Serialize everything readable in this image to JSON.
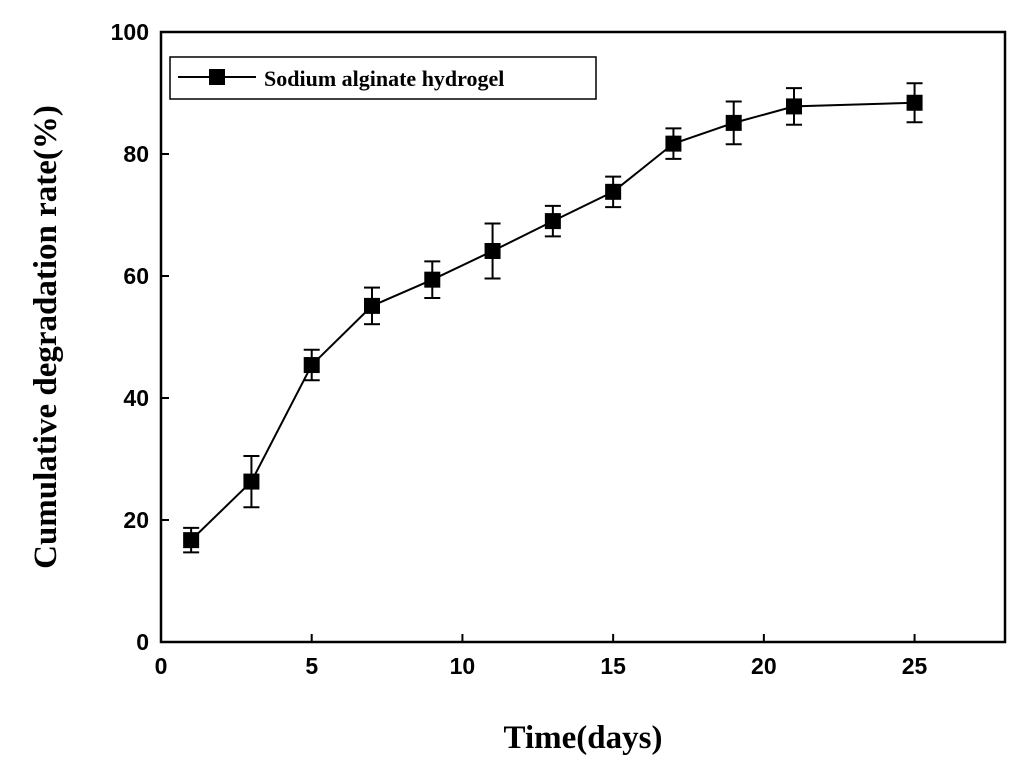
{
  "chart_data": {
    "type": "line",
    "title": "",
    "xlabel": "Time(days)",
    "ylabel": "Cumulative degradation rate(%)",
    "xlim": [
      0,
      28
    ],
    "ylim": [
      0,
      100
    ],
    "xticks": [
      0,
      5,
      10,
      15,
      20,
      25
    ],
    "yticks": [
      0,
      20,
      40,
      60,
      80,
      100
    ],
    "grid": false,
    "legend_position": "top-left",
    "series": [
      {
        "name": "Sodium alginate hydrogel",
        "color": "#000000",
        "marker": "square",
        "x": [
          1,
          3,
          5,
          7,
          9,
          11,
          13,
          15,
          17,
          19,
          21,
          25
        ],
        "y": [
          16.7,
          26.3,
          45.4,
          55.1,
          59.4,
          64.1,
          69.0,
          73.8,
          81.7,
          85.1,
          87.8,
          88.4
        ],
        "error": [
          2.0,
          4.2,
          2.5,
          3.0,
          3.0,
          4.5,
          2.5,
          2.5,
          2.5,
          3.5,
          3.0,
          3.2
        ]
      }
    ]
  }
}
